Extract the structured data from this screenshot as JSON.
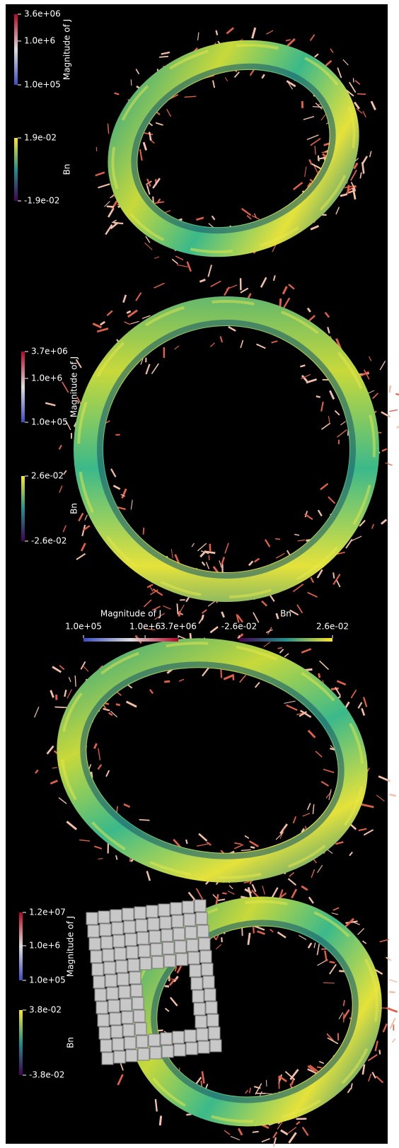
{
  "panels": [
    {
      "colorbars": [
        {
          "title": "Magnitude of J",
          "labels": [
            "3.6e+06",
            "1.0e+6",
            "1.0e+05"
          ]
        },
        {
          "title": "Bn",
          "labels": [
            "1.9e-02",
            "-1.9e-02"
          ]
        }
      ]
    },
    {
      "colorbars": [
        {
          "title": "Magnitude of J",
          "labels": [
            "3.7e+06",
            "1.0e+6",
            "1.0e+05"
          ]
        },
        {
          "title": "Bn",
          "labels": [
            "2.6e-02",
            "-2.6e-02"
          ]
        }
      ]
    },
    {
      "colorbars": [
        {
          "title": "Magnitude of J",
          "labels": [
            "1.0e+05",
            "1.0e+6",
            "3.7e+06"
          ]
        },
        {
          "title": "Bn",
          "labels": [
            "-2.6e-02",
            "2.6e-02"
          ]
        }
      ]
    },
    {
      "colorbars": [
        {
          "title": "Magnitude of J",
          "labels": [
            "1.2e+07",
            "1.0e+6",
            "1.0e+05"
          ]
        },
        {
          "title": "Bn",
          "labels": [
            "3.8e-02",
            "-3.8e-02"
          ]
        }
      ]
    }
  ]
}
